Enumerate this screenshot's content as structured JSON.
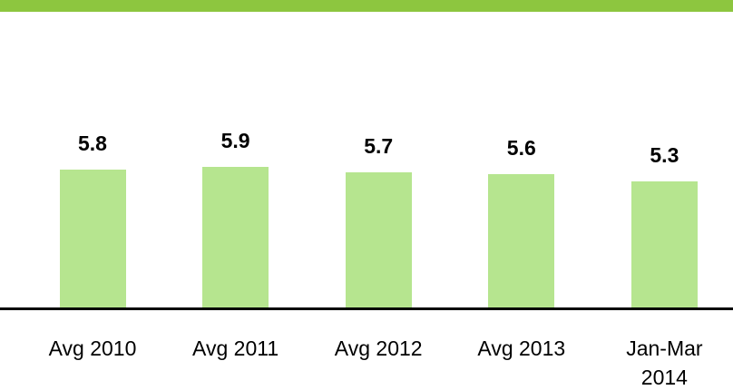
{
  "chart_data": {
    "type": "bar",
    "categories": [
      "Avg 2010",
      "Avg 2011",
      "Avg 2012",
      "Avg 2013",
      "Jan-Mar 2014"
    ],
    "values": [
      5.8,
      5.9,
      5.7,
      5.6,
      5.3
    ],
    "color": "#b6e58f"
  }
}
